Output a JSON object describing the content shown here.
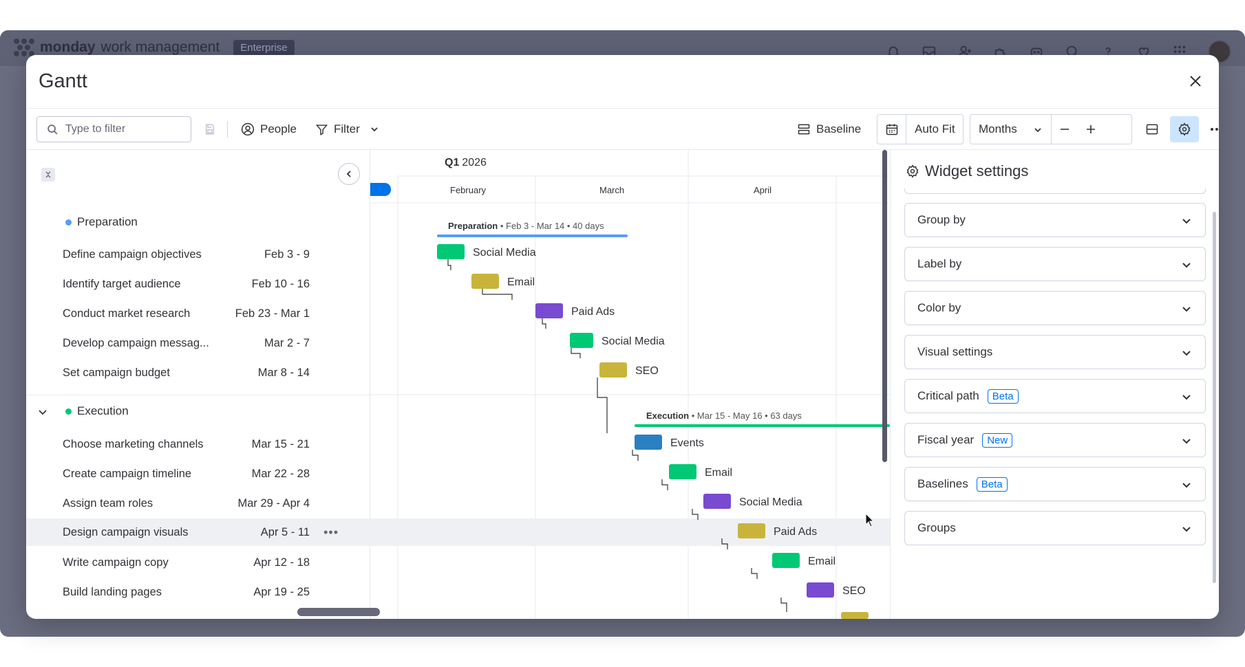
{
  "app": {
    "brand": "monday",
    "brand_sub": "work management",
    "plan_badge": "Enterprise"
  },
  "modal": {
    "title": "Gantt"
  },
  "toolbar": {
    "search_placeholder": "Type to filter",
    "people_label": "People",
    "filter_label": "Filter",
    "baseline_label": "Baseline",
    "auto_fit_label": "Auto Fit",
    "zoom_value": "Months"
  },
  "timeline": {
    "quarter_bold": "Q1",
    "quarter_year": "2026",
    "months": [
      "February",
      "March",
      "April"
    ]
  },
  "groups": [
    {
      "name": "Preparation",
      "color": "#579bfc",
      "summary_name": "Preparation",
      "summary_detail": " • Feb 3 - Mar 14 • 40 days",
      "bar_color": "#579bfc",
      "tasks": [
        {
          "name": "Define campaign objectives",
          "date": "Feb 3 - 9",
          "label": "Social Media",
          "color": "#00c875"
        },
        {
          "name": "Identify target audience",
          "date": "Feb 10 - 16",
          "label": "Email",
          "color": "#c9b43b"
        },
        {
          "name": "Conduct market research",
          "date": "Feb 23 - Mar 1",
          "label": "Paid Ads",
          "color": "#784bd1"
        },
        {
          "name": "Develop campaign messag...",
          "date": "Mar 2 - 7",
          "label": "Social Media",
          "color": "#00c875"
        },
        {
          "name": "Set campaign budget",
          "date": "Mar 8 - 14",
          "label": "SEO",
          "color": "#c9b43b"
        }
      ]
    },
    {
      "name": "Execution",
      "color": "#00c875",
      "summary_name": "Execution",
      "summary_detail": " • Mar 15 - May 16 • 63 days",
      "bar_color": "#00c875",
      "tasks": [
        {
          "name": "Choose marketing channels",
          "date": "Mar 15 - 21",
          "label": "Events",
          "color": "#2b7fc3"
        },
        {
          "name": "Create campaign timeline",
          "date": "Mar 22 - 28",
          "label": "Email",
          "color": "#00c875"
        },
        {
          "name": "Assign team roles",
          "date": "Mar 29 - Apr 4",
          "label": "Social Media",
          "color": "#784bd1"
        },
        {
          "name": "Design campaign visuals",
          "date": "Apr 5 - 11",
          "label": "Paid Ads",
          "color": "#c9b43b"
        },
        {
          "name": "Write campaign copy",
          "date": "Apr 12 - 18",
          "label": "Email",
          "color": "#00c875"
        },
        {
          "name": "Build landing pages",
          "date": "Apr 19 - 25",
          "label": "SEO",
          "color": "#784bd1"
        }
      ]
    }
  ],
  "settings": {
    "title": "Widget settings",
    "items": [
      {
        "label": "Group by",
        "tag": ""
      },
      {
        "label": "Label by",
        "tag": ""
      },
      {
        "label": "Color by",
        "tag": ""
      },
      {
        "label": "Visual settings",
        "tag": ""
      },
      {
        "label": "Critical path",
        "tag": "Beta"
      },
      {
        "label": "Fiscal year",
        "tag": "New"
      },
      {
        "label": "Baselines",
        "tag": "Beta"
      },
      {
        "label": "Groups",
        "tag": ""
      }
    ]
  }
}
